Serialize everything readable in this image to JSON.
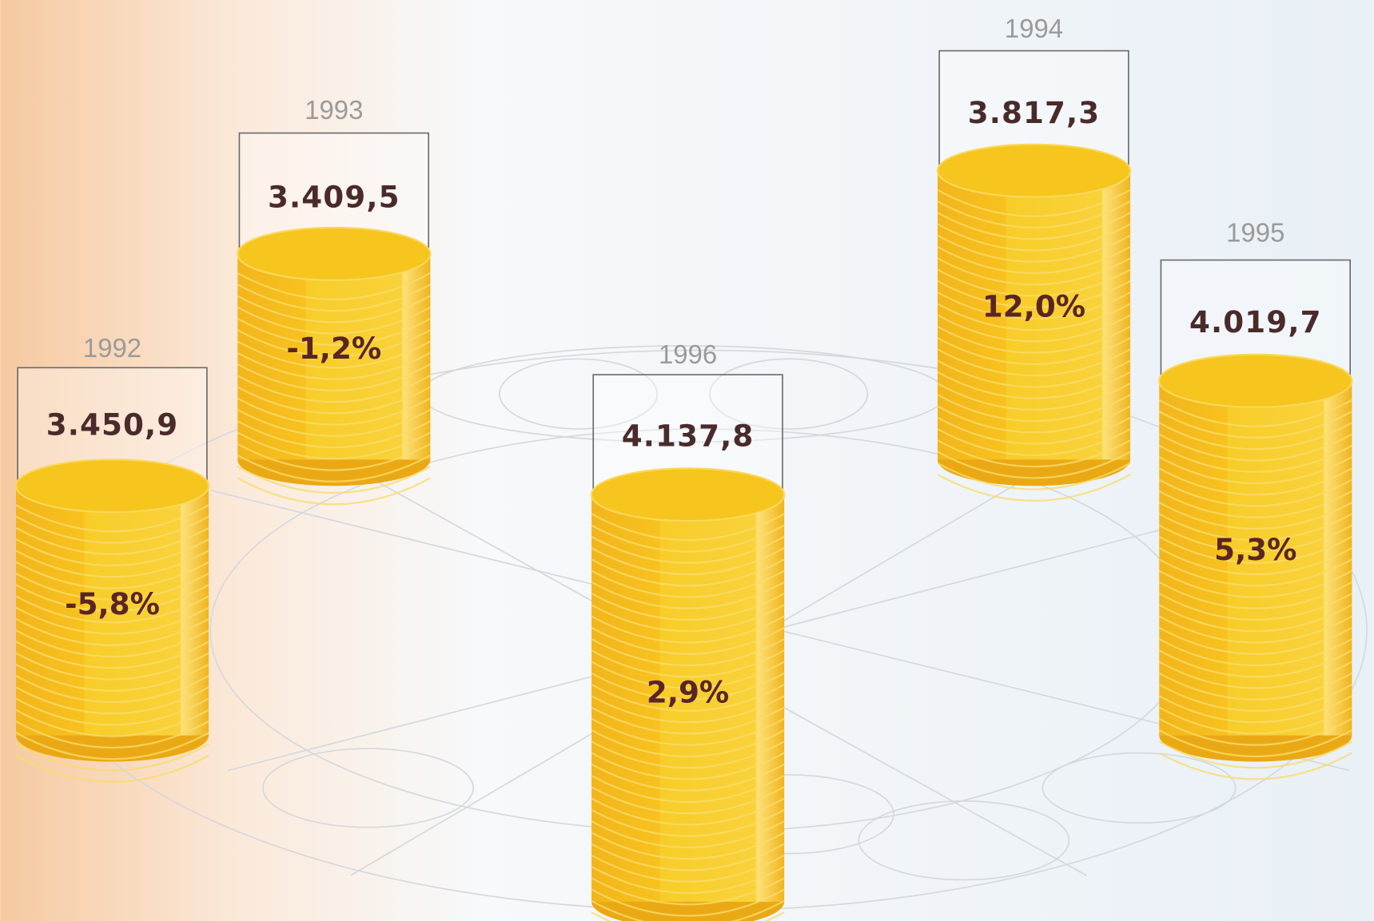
{
  "items": [
    {
      "year": "1992",
      "value": "3.450,9",
      "change": "-5,8%"
    },
    {
      "year": "1993",
      "value": "3.409,5",
      "change": "-1,2%"
    },
    {
      "year": "1994",
      "value": "3.817,3",
      "change": "12,0%"
    },
    {
      "year": "1995",
      "value": "4.019,7",
      "change": "5,3%"
    },
    {
      "year": "1996",
      "value": "4.137,8",
      "change": "2,9%"
    }
  ]
}
